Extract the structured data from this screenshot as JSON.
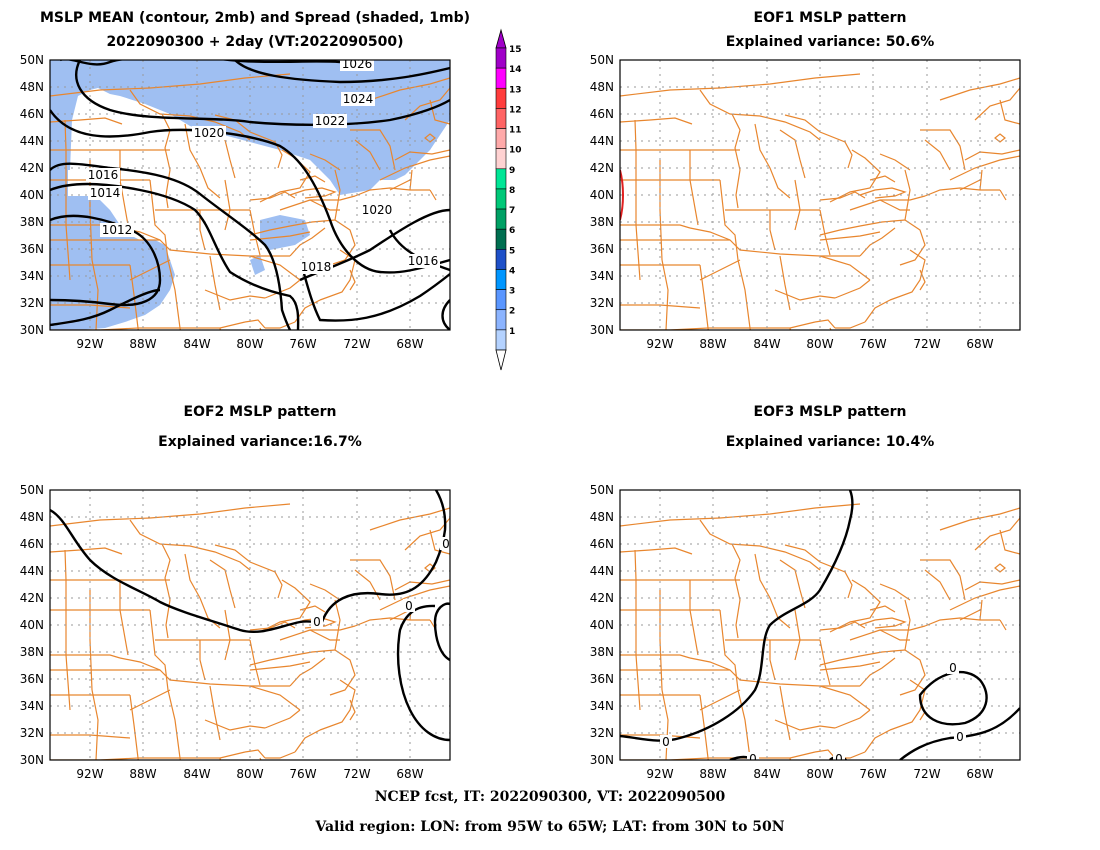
{
  "panels": [
    {
      "id": "p1",
      "title_lines": [
        "MSLP MEAN (contour, 2mb) and Spread (shaded, 1mb)",
        "2022090300 + 2day (VT:2022090500)"
      ],
      "contour_labels": [
        "1026",
        "1024",
        "1022",
        "1020",
        "1016",
        "1014",
        "1012",
        "1018",
        "1020",
        "1016"
      ]
    },
    {
      "id": "p2",
      "title_lines": [
        "EOF1 MSLP pattern",
        "Explained variance: 50.6%"
      ],
      "contour_labels": []
    },
    {
      "id": "p3",
      "title_lines": [
        "EOF2 MSLP pattern",
        "Explained variance:16.7%"
      ],
      "contour_labels": [
        "0",
        "0",
        "0"
      ]
    },
    {
      "id": "p4",
      "title_lines": [
        "EOF3 MSLP pattern",
        "Explained variance: 10.4%"
      ],
      "contour_labels": [
        "0",
        "0",
        "0",
        "0",
        "0"
      ]
    }
  ],
  "axes": {
    "lat_labels": [
      "50N",
      "48N",
      "46N",
      "44N",
      "42N",
      "40N",
      "38N",
      "36N",
      "34N",
      "32N",
      "30N"
    ],
    "lon_labels": [
      "92W",
      "88W",
      "84W",
      "80W",
      "76W",
      "72W",
      "68W"
    ]
  },
  "colorbar": {
    "labels": [
      "15",
      "14",
      "13",
      "12",
      "11",
      "10",
      "9",
      "8",
      "7",
      "6",
      "5",
      "4",
      "3",
      "2",
      "1"
    ],
    "colors": [
      "#a000c8",
      "#ff00ff",
      "#ff3c3c",
      "#ff6464",
      "#ffaaaa",
      "#ffd2d2",
      "#00e696",
      "#00c878",
      "#00a064",
      "#006e50",
      "#1e50c8",
      "#0096ff",
      "#5a96ff",
      "#8cb4ff",
      "#b4d2ff"
    ]
  },
  "colors": {
    "coast": "#e8862e",
    "contour": "#000000",
    "shade": "#9fbff2",
    "eof1_red": "#e02020"
  },
  "footer": {
    "line1": "NCEP fcst, IT: 2022090300, VT: 2022090500",
    "line2": "Valid region: LON: from 95W to 65W; LAT: from 30N to 50N"
  }
}
